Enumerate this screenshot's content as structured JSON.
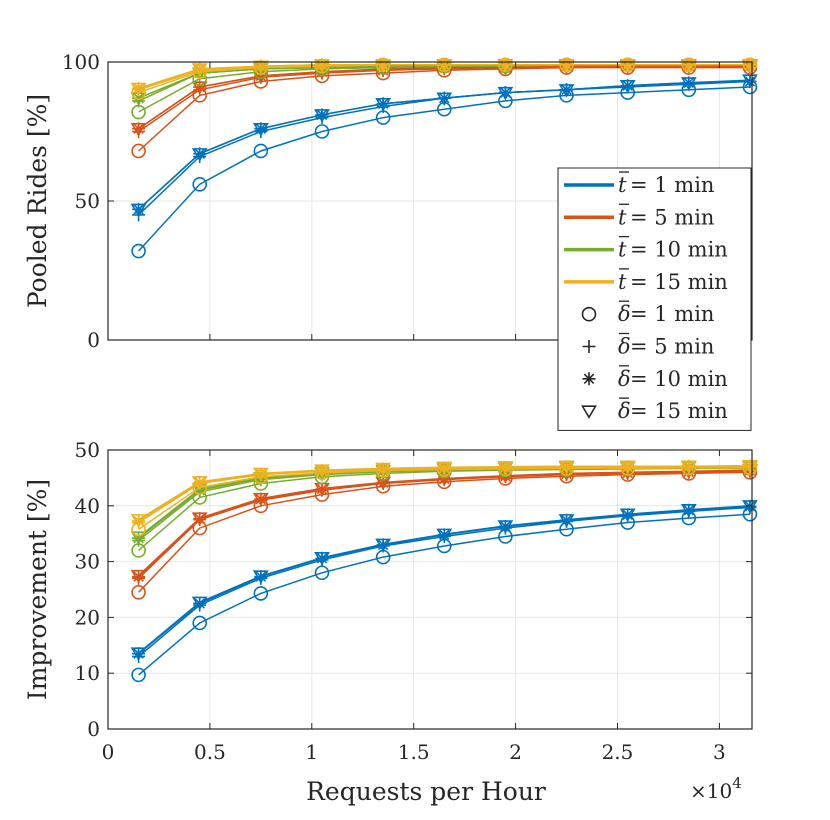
{
  "chart_data": [
    {
      "type": "line",
      "id": "pooled",
      "title": "",
      "ylabel": "Pooled Rides [%]",
      "xlabel": "",
      "xlim": [
        0,
        31600
      ],
      "ylim": [
        0,
        100
      ],
      "yticks": [
        0,
        50,
        100
      ],
      "ytick_labels": [
        "0",
        "50",
        "100"
      ],
      "grid": true,
      "x": [
        1500,
        4500,
        7500,
        10500,
        13500,
        16500,
        19500,
        22500,
        25500,
        28500,
        31500
      ],
      "series": [
        {
          "name": "t=1, δ=1",
          "t": 1,
          "delta": 1,
          "marker": "circle",
          "values": [
            32,
            56,
            68,
            75,
            80,
            83,
            86,
            88,
            89,
            90,
            91
          ]
        },
        {
          "name": "t=1, δ=5",
          "t": 1,
          "delta": 5,
          "marker": "plus",
          "values": [
            45,
            66,
            75,
            80,
            84,
            87,
            89,
            90,
            91,
            92,
            93
          ]
        },
        {
          "name": "t=1, δ=10",
          "t": 1,
          "delta": 10,
          "marker": "asterisk",
          "values": [
            47,
            67,
            76,
            81,
            85,
            87,
            89,
            90,
            91.5,
            92.5,
            93
          ]
        },
        {
          "name": "t=1, δ=15",
          "t": 1,
          "delta": 15,
          "marker": "triangle",
          "values": [
            47,
            67,
            76,
            81,
            85,
            87,
            89,
            90,
            91.5,
            92.5,
            93.5
          ]
        },
        {
          "name": "t=5, δ=1",
          "t": 5,
          "delta": 1,
          "marker": "circle",
          "values": [
            68,
            88,
            93,
            95,
            96,
            97,
            97.5,
            98,
            98,
            98,
            98
          ]
        },
        {
          "name": "t=5, δ=5",
          "t": 5,
          "delta": 5,
          "marker": "plus",
          "values": [
            75,
            90,
            94.5,
            96,
            97,
            97.5,
            98,
            98,
            98.5,
            98.5,
            98.5
          ]
        },
        {
          "name": "t=5, δ=10",
          "t": 5,
          "delta": 10,
          "marker": "asterisk",
          "values": [
            76,
            91,
            95,
            96.5,
            97,
            98,
            98,
            98.5,
            98.5,
            98.5,
            98.5
          ]
        },
        {
          "name": "t=5, δ=15",
          "t": 5,
          "delta": 15,
          "marker": "triangle",
          "values": [
            76,
            91,
            95,
            96.5,
            97.5,
            98,
            98,
            98.5,
            98.5,
            98.5,
            98.5
          ]
        },
        {
          "name": "t=10, δ=1",
          "t": 10,
          "delta": 1,
          "marker": "circle",
          "values": [
            82,
            94,
            96.5,
            97.5,
            98,
            98.5,
            98.5,
            99,
            99,
            99,
            99
          ]
        },
        {
          "name": "t=10, δ=5",
          "t": 10,
          "delta": 5,
          "marker": "plus",
          "values": [
            86,
            96,
            97.5,
            98,
            98.5,
            99,
            99,
            99,
            99,
            99,
            99
          ]
        },
        {
          "name": "t=10, δ=10",
          "t": 10,
          "delta": 10,
          "marker": "asterisk",
          "values": [
            87,
            96,
            97.5,
            98,
            98.5,
            99,
            99,
            99,
            99,
            99,
            99
          ]
        },
        {
          "name": "t=10, δ=15",
          "t": 10,
          "delta": 15,
          "marker": "triangle",
          "values": [
            87,
            96,
            97.5,
            98,
            98.5,
            99,
            99,
            99,
            99,
            99,
            99
          ]
        },
        {
          "name": "t=15, δ=1",
          "t": 15,
          "delta": 1,
          "marker": "circle",
          "values": [
            89,
            96.5,
            98,
            98.5,
            99,
            99,
            99,
            99,
            99,
            99,
            99
          ]
        },
        {
          "name": "t=15, δ=5",
          "t": 15,
          "delta": 5,
          "marker": "plus",
          "values": [
            90,
            97,
            98.5,
            99,
            99,
            99,
            99,
            99,
            99,
            99,
            99
          ]
        },
        {
          "name": "t=15, δ=10",
          "t": 15,
          "delta": 10,
          "marker": "asterisk",
          "values": [
            90.5,
            97.5,
            98.5,
            99,
            99,
            99,
            99,
            99,
            99,
            99,
            99
          ]
        },
        {
          "name": "t=15, δ=15",
          "t": 15,
          "delta": 15,
          "marker": "triangle",
          "values": [
            90.5,
            97.5,
            98.5,
            99,
            99,
            99,
            99,
            99,
            99,
            99,
            99
          ]
        }
      ]
    },
    {
      "type": "line",
      "id": "improvement",
      "title": "",
      "ylabel": "Improvement [%]",
      "xlabel": "Requests per Hour",
      "xlim": [
        0,
        31600
      ],
      "ylim": [
        0,
        50
      ],
      "yticks": [
        0,
        10,
        20,
        30,
        40,
        50
      ],
      "ytick_labels": [
        "0",
        "10",
        "20",
        "30",
        "40",
        "50"
      ],
      "xticks": [
        0,
        5000,
        10000,
        15000,
        20000,
        25000,
        30000
      ],
      "xtick_labels": [
        "0",
        "0.5",
        "1",
        "1.5",
        "2",
        "2.5",
        "3"
      ],
      "x_exponent_base": "×10",
      "x_exponent_power": "4",
      "grid": true,
      "x": [
        1500,
        4500,
        7500,
        10500,
        13500,
        16500,
        19500,
        22500,
        25500,
        28500,
        31500
      ],
      "series": [
        {
          "name": "t=1, δ=1",
          "t": 1,
          "delta": 1,
          "marker": "circle",
          "values": [
            9.7,
            19,
            24.3,
            28,
            30.8,
            32.8,
            34.5,
            35.8,
            37,
            37.8,
            38.5
          ]
        },
        {
          "name": "t=1, δ=5",
          "t": 1,
          "delta": 5,
          "marker": "plus",
          "values": [
            13,
            22.2,
            27,
            30.3,
            32.8,
            34.5,
            36,
            37.2,
            38.2,
            39,
            39.7
          ]
        },
        {
          "name": "t=1, δ=10",
          "t": 1,
          "delta": 10,
          "marker": "asterisk",
          "values": [
            13.5,
            22.5,
            27.3,
            30.6,
            33,
            34.8,
            36.3,
            37.4,
            38.4,
            39.2,
            39.9
          ]
        },
        {
          "name": "t=1, δ=15",
          "t": 1,
          "delta": 15,
          "marker": "triangle",
          "values": [
            13.6,
            22.7,
            27.4,
            30.7,
            33.1,
            34.9,
            36.4,
            37.5,
            38.5,
            39.3,
            40
          ]
        },
        {
          "name": "t=5, δ=1",
          "t": 5,
          "delta": 1,
          "marker": "circle",
          "values": [
            24.5,
            36,
            40,
            42,
            43.5,
            44.3,
            44.9,
            45.3,
            45.6,
            45.8,
            46
          ]
        },
        {
          "name": "t=5, δ=5",
          "t": 5,
          "delta": 5,
          "marker": "plus",
          "values": [
            27,
            37.5,
            41,
            42.8,
            44,
            44.7,
            45.2,
            45.6,
            45.8,
            46,
            46.2
          ]
        },
        {
          "name": "t=5, δ=10",
          "t": 5,
          "delta": 10,
          "marker": "asterisk",
          "values": [
            27.3,
            37.7,
            41.2,
            43,
            44.1,
            44.8,
            45.3,
            45.7,
            45.9,
            46.1,
            46.3
          ]
        },
        {
          "name": "t=5, δ=15",
          "t": 5,
          "delta": 15,
          "marker": "triangle",
          "values": [
            27.5,
            37.8,
            41.3,
            43.1,
            44.2,
            44.9,
            45.4,
            45.8,
            46,
            46.2,
            46.4
          ]
        },
        {
          "name": "t=10, δ=1",
          "t": 10,
          "delta": 1,
          "marker": "circle",
          "values": [
            32,
            41.5,
            44,
            45.2,
            45.8,
            46.2,
            46.4,
            46.5,
            46.6,
            46.7,
            46.7
          ]
        },
        {
          "name": "t=10, δ=5",
          "t": 10,
          "delta": 5,
          "marker": "plus",
          "values": [
            33.8,
            42.5,
            44.7,
            45.6,
            46.1,
            46.4,
            46.6,
            46.7,
            46.8,
            46.8,
            46.9
          ]
        },
        {
          "name": "t=10, δ=10",
          "t": 10,
          "delta": 10,
          "marker": "asterisk",
          "values": [
            34.2,
            42.8,
            44.9,
            45.8,
            46.2,
            46.5,
            46.7,
            46.8,
            46.9,
            46.9,
            47
          ]
        },
        {
          "name": "t=10, δ=15",
          "t": 10,
          "delta": 15,
          "marker": "triangle",
          "values": [
            34.4,
            43,
            45,
            45.9,
            46.3,
            46.6,
            46.8,
            46.9,
            46.9,
            47,
            47
          ]
        },
        {
          "name": "t=15, δ=1",
          "t": 15,
          "delta": 1,
          "marker": "circle",
          "values": [
            35.8,
            43.3,
            45.2,
            45.9,
            46.3,
            46.5,
            46.6,
            46.7,
            46.7,
            46.8,
            46.8
          ]
        },
        {
          "name": "t=15, δ=5",
          "t": 15,
          "delta": 5,
          "marker": "plus",
          "values": [
            37,
            44,
            45.6,
            46.2,
            46.5,
            46.7,
            46.8,
            46.9,
            46.9,
            47,
            47
          ]
        },
        {
          "name": "t=15, δ=10",
          "t": 15,
          "delta": 10,
          "marker": "asterisk",
          "values": [
            37.3,
            44.2,
            45.7,
            46.3,
            46.6,
            46.8,
            46.9,
            47,
            47,
            47.1,
            47.1
          ]
        },
        {
          "name": "t=15, δ=15",
          "t": 15,
          "delta": 15,
          "marker": "triangle",
          "values": [
            37.5,
            44.3,
            45.8,
            46.4,
            46.7,
            46.9,
            47,
            47.1,
            47.1,
            47.1,
            47.2
          ]
        }
      ]
    }
  ],
  "colors": {
    "1": "#0072BD",
    "5": "#D95319",
    "10": "#77AC30",
    "15": "#EDB120",
    "axis": "#262626",
    "grid": "#e6e6e6"
  },
  "legend": {
    "position": "right",
    "entries": [
      {
        "kind": "line",
        "key": "1",
        "sym": "t",
        "text": " = 1 min"
      },
      {
        "kind": "line",
        "key": "5",
        "sym": "t",
        "text": " = 5 min"
      },
      {
        "kind": "line",
        "key": "10",
        "sym": "t",
        "text": " = 10 min"
      },
      {
        "kind": "line",
        "key": "15",
        "sym": "t",
        "text": " = 15 min"
      },
      {
        "kind": "marker",
        "marker": "circle",
        "sym": "δ",
        "text": " = 1 min"
      },
      {
        "kind": "marker",
        "marker": "plus",
        "sym": "δ",
        "text": " = 5 min"
      },
      {
        "kind": "marker",
        "marker": "asterisk",
        "sym": "δ",
        "text": " = 10 min"
      },
      {
        "kind": "marker",
        "marker": "triangle",
        "sym": "δ",
        "text": " = 15 min"
      }
    ]
  }
}
